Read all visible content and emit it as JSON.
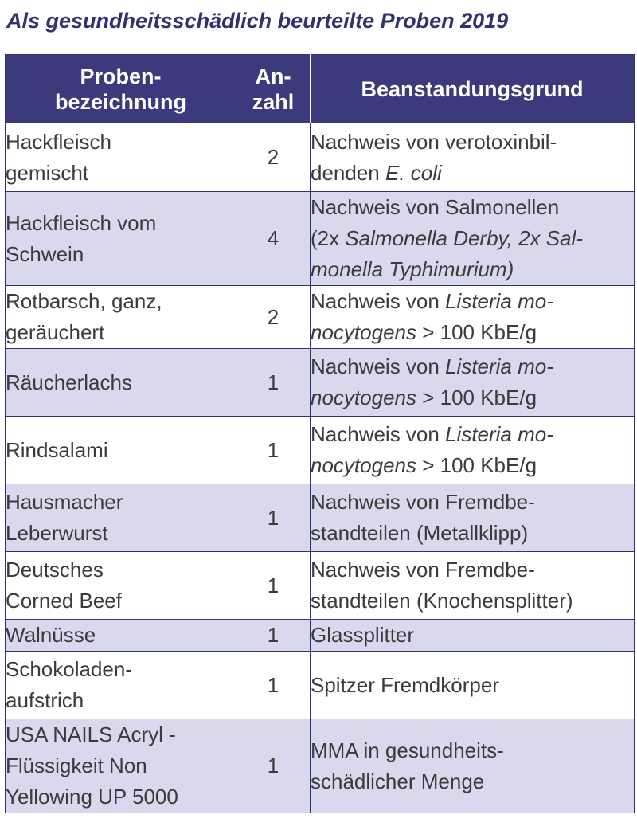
{
  "title": "Als gesundheitsschädlich beurteilte Proben 2019",
  "colors": {
    "title": "#2f3270",
    "header_bg": "#3a3a7c",
    "row_shade": "#d9d8ec",
    "border": "#2f3270"
  },
  "table": {
    "headers": {
      "name": [
        "Proben-",
        "bezeichnung"
      ],
      "count": [
        "An-",
        "zahl"
      ],
      "reason": [
        "Beanstandungsgrund"
      ]
    },
    "rows": [
      {
        "name": [
          "Hackfleisch",
          "gemischt"
        ],
        "count": "2",
        "reason": [
          [
            {
              "t": "Nachweis von verotoxinbil-"
            }
          ],
          [
            {
              "t": "denden "
            },
            {
              "t": "E. coli",
              "i": true
            }
          ]
        ]
      },
      {
        "name": [
          "Hackfleisch vom",
          "Schwein"
        ],
        "count": "4",
        "reason": [
          [
            {
              "t": "Nachweis von Salmonellen"
            }
          ],
          [
            {
              "t": "(2x "
            },
            {
              "t": "Salmonella Derby, 2x Sal-",
              "i": true
            }
          ],
          [
            {
              "t": "monella Typhimurium)",
              "i": true
            }
          ]
        ]
      },
      {
        "name": [
          "Rotbarsch, ganz,",
          "geräuchert"
        ],
        "count": "2",
        "reason": [
          [
            {
              "t": "Nachweis von "
            },
            {
              "t": "Listeria mo-",
              "i": true
            }
          ],
          [
            {
              "t": "nocytogens",
              "i": true
            },
            {
              "t": " > 100 KbE/g"
            }
          ]
        ]
      },
      {
        "name": [
          "Räucherlachs"
        ],
        "count": "1",
        "reason": [
          [
            {
              "t": "Nachweis von "
            },
            {
              "t": "Listeria mo-",
              "i": true
            }
          ],
          [
            {
              "t": "nocytogens",
              "i": true
            },
            {
              "t": " > 100 KbE/g"
            }
          ]
        ]
      },
      {
        "name": [
          "Rindsalami"
        ],
        "count": "1",
        "reason": [
          [
            {
              "t": "Nachweis von "
            },
            {
              "t": "Listeria mo-",
              "i": true
            }
          ],
          [
            {
              "t": "nocytogens",
              "i": true
            },
            {
              "t": " > 100 KbE/g"
            }
          ]
        ]
      },
      {
        "name": [
          "Hausmacher",
          "Leberwurst"
        ],
        "count": "1",
        "reason": [
          [
            {
              "t": "Nachweis von  Fremdbe-"
            }
          ],
          [
            {
              "t": "standteilen (Metallklipp)"
            }
          ]
        ]
      },
      {
        "name": [
          "Deutsches",
          "Corned Beef"
        ],
        "count": "1",
        "reason": [
          [
            {
              "t": "Nachweis von  Fremdbe-"
            }
          ],
          [
            {
              "t": "standteilen (Knochensplitter)"
            }
          ]
        ]
      },
      {
        "name": [
          "Walnüsse"
        ],
        "count": "1",
        "reason": [
          [
            {
              "t": "Glassplitter"
            }
          ]
        ]
      },
      {
        "name": [
          "Schokoladen-",
          "aufstrich"
        ],
        "count": "1",
        "reason": [
          [
            {
              "t": "Spitzer Fremdkörper"
            }
          ]
        ]
      },
      {
        "name": [
          "USA NAILS Acryl -",
          "Flüssigkeit Non",
          "Yellowing UP 5000"
        ],
        "count": "1",
        "reason": [
          [
            {
              "t": "MMA in gesundheits-"
            }
          ],
          [
            {
              "t": "schädlicher Menge"
            }
          ]
        ]
      }
    ]
  }
}
